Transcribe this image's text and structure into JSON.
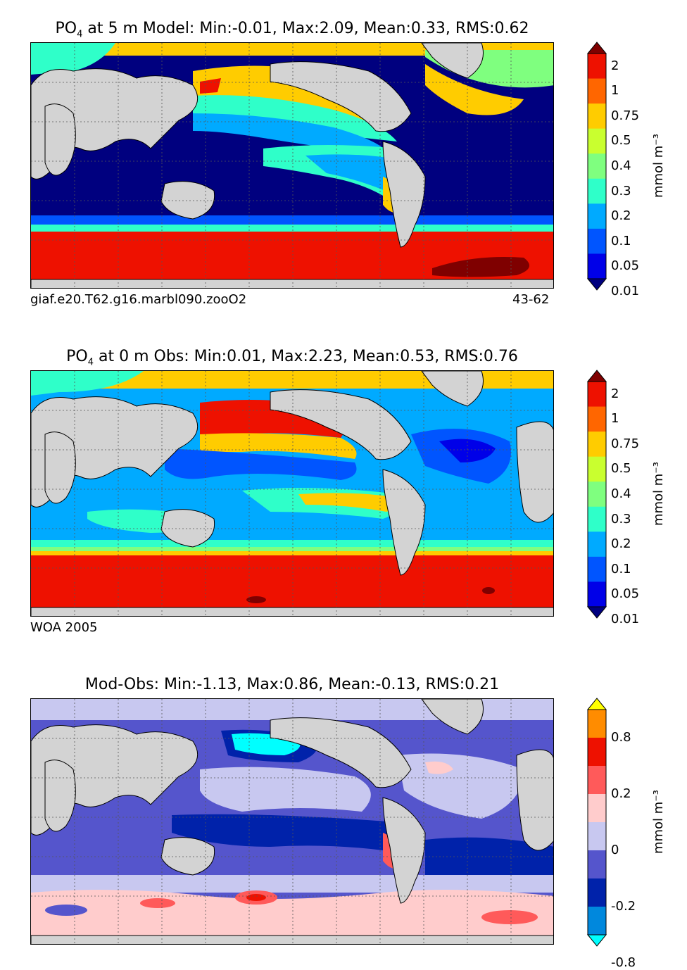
{
  "panels": [
    {
      "title_prefix": "PO",
      "title_sub": "4",
      "title_rest": "at 5 m Model: Min:-0.01, Max:2.09, Mean:0.33, RMS:0.62",
      "foot_left": "giaf.e20.T62.g16.marbl090.zooO2",
      "foot_right": "43-62",
      "colorbar_ticks": [
        "2",
        "1",
        "0.75",
        "0.5",
        "0.4",
        "0.3",
        "0.2",
        "0.1",
        "0.05",
        "0.01"
      ],
      "colorbar_colors": [
        "#7f0000",
        "#ee1100",
        "#ff6600",
        "#ffcc00",
        "#c9ff2f",
        "#7fff7f",
        "#2fffc9",
        "#00aaff",
        "#0055ff",
        "#0000e8",
        "#00007f"
      ],
      "units": "mmol m⁻³"
    },
    {
      "title_prefix": "PO",
      "title_sub": "4",
      "title_rest": "at 0 m Obs: Min:0.01, Max:2.23, Mean:0.53, RMS:0.76",
      "foot_left": "WOA 2005",
      "colorbar_ticks": [
        "2",
        "1",
        "0.75",
        "0.5",
        "0.4",
        "0.3",
        "0.2",
        "0.1",
        "0.05",
        "0.01"
      ],
      "colorbar_colors": [
        "#7f0000",
        "#ee1100",
        "#ff6600",
        "#ffcc00",
        "#c9ff2f",
        "#7fff7f",
        "#2fffc9",
        "#00aaff",
        "#0055ff",
        "#0000e8",
        "#00007f"
      ],
      "units": "mmol m⁻³"
    },
    {
      "title": "Mod-Obs: Min:-1.13, Max:0.86, Mean:-0.13, RMS:0.21",
      "colorbar_ticks": [
        "0.8",
        "0.2",
        "0",
        "-0.2",
        "-0.8"
      ],
      "colorbar_colors": [
        "#ffff00",
        "#ff8c00",
        "#ee1100",
        "#ff5a5a",
        "#ffcccc",
        "#c8c8f0",
        "#5555cc",
        "#0022aa",
        "#0088dd",
        "#00ffff"
      ],
      "units": "mmol m⁻³"
    }
  ],
  "chart_data": [
    {
      "type": "heatmap",
      "title": "PO4 at 5 m Model: Min:-0.01, Max:2.09, Mean:0.33, RMS:0.62",
      "variable": "PO4",
      "depth_m": 5,
      "source": "Model",
      "stats": {
        "min": -0.01,
        "max": 2.09,
        "mean": 0.33,
        "rms": 0.62
      },
      "colorbar_levels": [
        0.01,
        0.05,
        0.1,
        0.2,
        0.3,
        0.4,
        0.5,
        0.75,
        1,
        2
      ],
      "units": "mmol m^-3",
      "case": "giaf.e20.T62.g16.marbl090.zooO2",
      "years": "43-62",
      "xlim": [
        20,
        380
      ],
      "ylim": [
        -80,
        90
      ]
    },
    {
      "type": "heatmap",
      "title": "PO4 at 0 m Obs: Min:0.01, Max:2.23, Mean:0.53, RMS:0.76",
      "variable": "PO4",
      "depth_m": 0,
      "source": "Obs",
      "stats": {
        "min": 0.01,
        "max": 2.23,
        "mean": 0.53,
        "rms": 0.76
      },
      "colorbar_levels": [
        0.01,
        0.05,
        0.1,
        0.2,
        0.3,
        0.4,
        0.5,
        0.75,
        1,
        2
      ],
      "units": "mmol m^-3",
      "dataset": "WOA 2005",
      "xlim": [
        20,
        380
      ],
      "ylim": [
        -80,
        90
      ]
    },
    {
      "type": "heatmap",
      "title": "Mod-Obs: Min:-1.13, Max:0.86, Mean:-0.13, RMS:0.21",
      "stats": {
        "min": -1.13,
        "max": 0.86,
        "mean": -0.13,
        "rms": 0.21
      },
      "colorbar_ticks": [
        0.8,
        0.2,
        0,
        -0.2,
        -0.8
      ],
      "units": "mmol m^-3",
      "xlim": [
        20,
        380
      ],
      "ylim": [
        -80,
        90
      ]
    }
  ]
}
